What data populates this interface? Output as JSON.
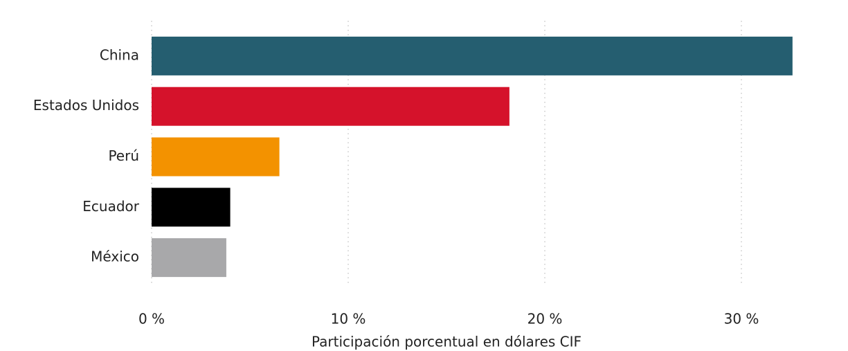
{
  "chart_data": {
    "type": "bar",
    "orientation": "horizontal",
    "categories": [
      "China",
      "Estados Unidos",
      "Perú",
      "Ecuador",
      "México"
    ],
    "values": [
      32.6,
      18.2,
      6.5,
      4.0,
      3.8
    ],
    "colors": [
      "#255e70",
      "#d5122b",
      "#f39200",
      "#000000",
      "#a8a8aa"
    ],
    "xlabel": "Participación porcentual en dólares CIF",
    "xlim": [
      0,
      34
    ],
    "xticks": [
      {
        "value": 0,
        "label": "0 %"
      },
      {
        "value": 10,
        "label": "10 %"
      },
      {
        "value": 20,
        "label": "20 %"
      },
      {
        "value": 30,
        "label": "30 %"
      }
    ],
    "grid": true
  }
}
